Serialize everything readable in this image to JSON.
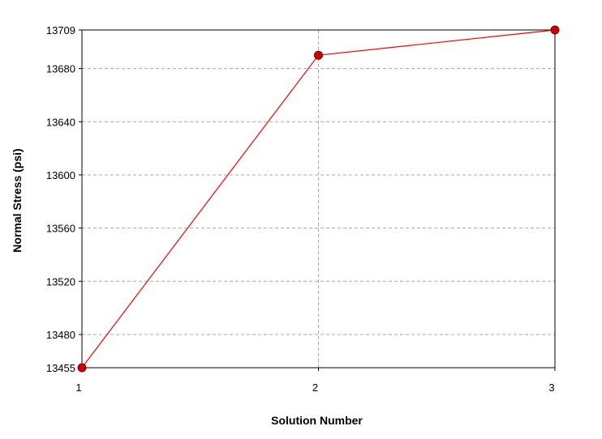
{
  "chart_data": {
    "type": "line",
    "title": "",
    "xlabel": "Solution Number",
    "ylabel": "Normal Stress  (psi)",
    "x": [
      1,
      2,
      3
    ],
    "x_ticks": [
      "1",
      "2",
      "3"
    ],
    "xlim": [
      1,
      3
    ],
    "y_ticks": [
      13455,
      13480,
      13520,
      13560,
      13600,
      13640,
      13680,
      13709
    ],
    "ylim": [
      13455,
      13709
    ],
    "series": [
      {
        "values": [
          13455,
          13690,
          13709
        ],
        "color": "#ff0000",
        "marker_color": "#cc0000"
      }
    ],
    "grid": true,
    "legend": "none"
  }
}
